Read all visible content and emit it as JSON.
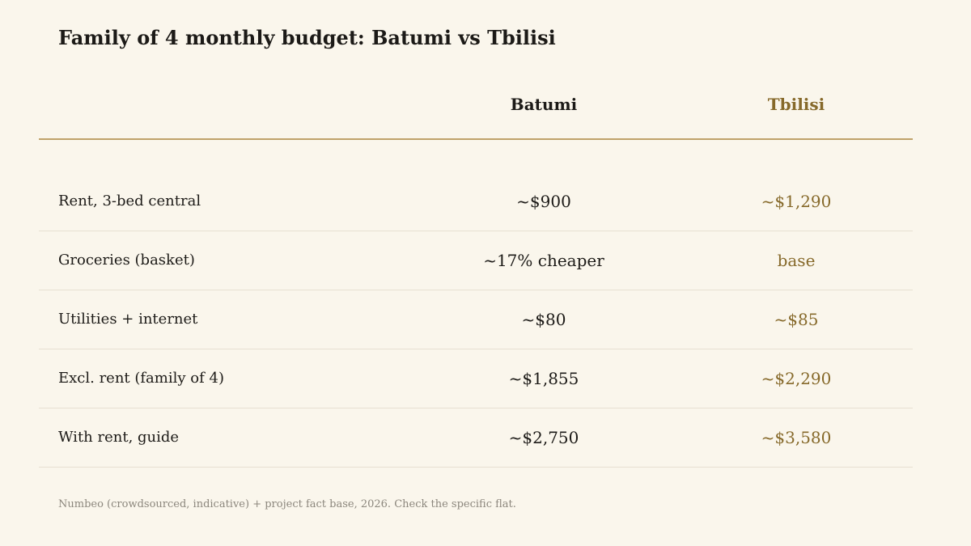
{
  "title": "Family of 4 monthly budget: Batumi vs Tbilisi",
  "footnote": "Numbeo (crowdsourced, indicative) + project fact base, 2026. Check the specific flat.",
  "colors": {
    "background": "#faf6ec",
    "text": "#1c1a17",
    "tbilisi_accent": "#86692a",
    "header_rule": "#bfa26a",
    "row_divider": "#e7e0d2",
    "footnote": "#8c877d"
  },
  "chart_data": {
    "type": "table",
    "title": "Family of 4 monthly budget: Batumi vs Tbilisi",
    "columns": [
      "",
      "Batumi",
      "Tbilisi"
    ],
    "rows": [
      {
        "label": "Rent, 3-bed central",
        "batumi": "~$900",
        "tbilisi": "~$1,290"
      },
      {
        "label": "Groceries (basket)",
        "batumi": "~17% cheaper",
        "tbilisi": "base"
      },
      {
        "label": "Utilities + internet",
        "batumi": "~$80",
        "tbilisi": "~$85"
      },
      {
        "label": "Excl. rent (family of 4)",
        "batumi": "~$1,855",
        "tbilisi": "~$2,290"
      },
      {
        "label": "With rent, guide",
        "batumi": "~$2,750",
        "tbilisi": "~$3,580"
      }
    ]
  }
}
